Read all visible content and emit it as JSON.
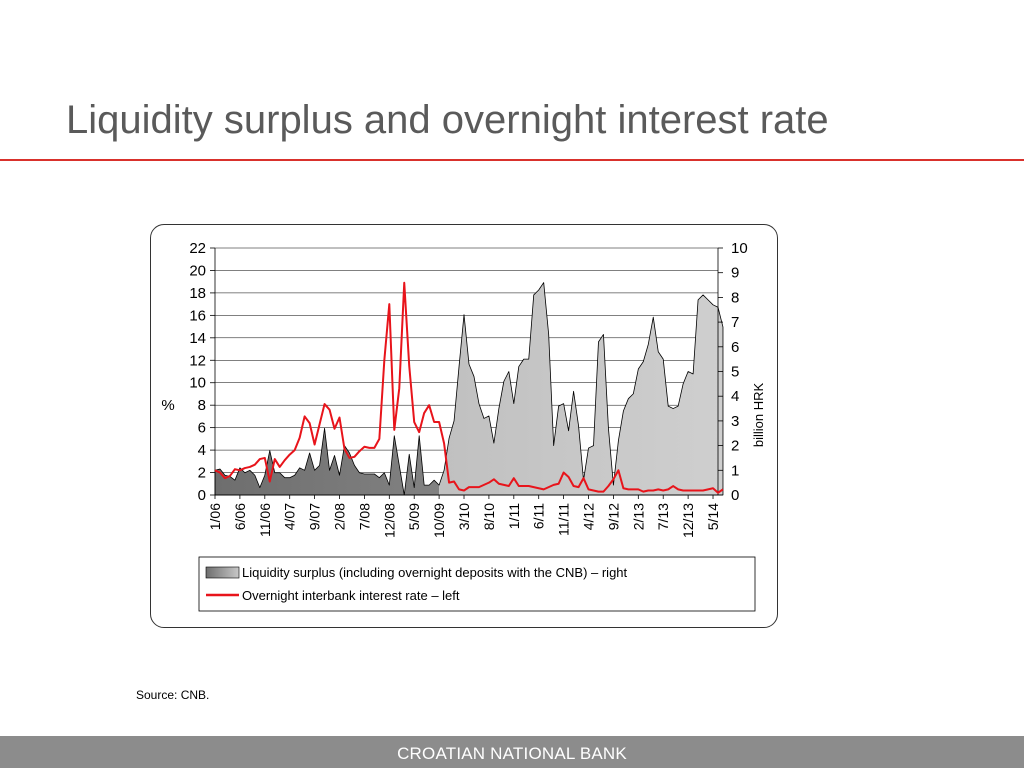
{
  "slide": {
    "title": "Liquidity surplus and overnight interest rate",
    "source": "Source: CNB.",
    "footer": "CROATIAN NATIONAL BANK"
  },
  "colors": {
    "rule": "#d9312c",
    "rate_line": "#e8141b",
    "area_dark": "#7a7a7a",
    "area_light": "#c4c4c4",
    "footer_bar": "#8c8c8c"
  },
  "chart_data": {
    "type": "area",
    "left_axis": {
      "label": "%",
      "ylim": [
        0,
        22
      ],
      "ticks": [
        0,
        2,
        4,
        6,
        8,
        10,
        12,
        14,
        16,
        18,
        20,
        22
      ]
    },
    "right_axis": {
      "label": "billion HRK",
      "ylim": [
        0,
        10
      ],
      "ticks": [
        0,
        1,
        2,
        3,
        4,
        5,
        6,
        7,
        8,
        9,
        10
      ]
    },
    "x_tick_labels": [
      "1/06",
      "6/06",
      "11/06",
      "4/07",
      "9/07",
      "2/08",
      "7/08",
      "12/08",
      "5/09",
      "10/09",
      "3/10",
      "8/10",
      "1/11",
      "6/11",
      "11/11",
      "4/12",
      "9/12",
      "2/13",
      "7/13",
      "12/13",
      "5/14"
    ],
    "x_month_index": [
      0,
      5,
      10,
      15,
      20,
      25,
      30,
      35,
      40,
      45,
      50,
      55,
      60,
      65,
      70,
      75,
      80,
      85,
      90,
      95,
      100
    ],
    "x_range": [
      0,
      101
    ],
    "gradient_split_month": 45,
    "grid": "horizontal",
    "legend_position": "bottom",
    "series": [
      {
        "name": "Liquidity surplus (including overnight deposits with the CNB) – right",
        "axis": "right",
        "kind": "area",
        "values": [
          1.0,
          1.05,
          0.8,
          0.75,
          0.6,
          1.1,
          0.9,
          1.0,
          0.8,
          0.3,
          0.8,
          1.8,
          0.9,
          0.9,
          0.7,
          0.7,
          0.8,
          1.1,
          1.0,
          1.7,
          1.0,
          1.2,
          2.7,
          1.0,
          1.6,
          0.8,
          2.0,
          1.7,
          1.2,
          0.9,
          0.85,
          0.85,
          0.85,
          0.7,
          0.9,
          0.4,
          2.4,
          1.2,
          0.0,
          1.65,
          0.3,
          2.4,
          0.4,
          0.4,
          0.6,
          0.4,
          1.0,
          2.3,
          3.0,
          5.2,
          7.3,
          5.3,
          4.8,
          3.7,
          3.1,
          3.2,
          2.1,
          3.5,
          4.6,
          5.0,
          3.7,
          5.2,
          5.5,
          5.5,
          8.1,
          8.3,
          8.6,
          6.5,
          2.0,
          3.6,
          3.7,
          2.6,
          4.2,
          2.8,
          0.6,
          1.9,
          2.0,
          6.2,
          6.5,
          2.7,
          0.4,
          2.2,
          3.4,
          3.9,
          4.1,
          5.1,
          5.4,
          6.1,
          7.2,
          5.8,
          5.5,
          3.6,
          3.5,
          3.6,
          4.5,
          5.0,
          4.9,
          7.9,
          8.1,
          7.9,
          7.7,
          7.6,
          6.8
        ]
      },
      {
        "name": "Overnight interbank interest rate – left",
        "axis": "left",
        "kind": "line",
        "values": [
          2.2,
          2.0,
          1.5,
          1.7,
          2.3,
          2.2,
          2.4,
          2.5,
          2.7,
          3.2,
          3.3,
          1.2,
          3.2,
          2.5,
          3.1,
          3.6,
          4.0,
          5.1,
          7.0,
          6.4,
          4.5,
          6.3,
          8.1,
          7.6,
          5.9,
          6.9,
          4.1,
          3.3,
          3.4,
          3.9,
          4.3,
          4.2,
          4.2,
          5.0,
          12.0,
          17.0,
          5.8,
          9.5,
          18.9,
          11.5,
          6.5,
          5.6,
          7.3,
          8.0,
          6.5,
          6.5,
          4.6,
          1.1,
          1.2,
          0.5,
          0.4,
          0.7,
          0.7,
          0.7,
          0.9,
          1.1,
          1.4,
          1.0,
          0.9,
          0.8,
          1.5,
          0.8,
          0.8,
          0.8,
          0.7,
          0.6,
          0.5,
          0.7,
          0.9,
          1.0,
          2.0,
          1.6,
          0.8,
          0.7,
          1.5,
          0.5,
          0.4,
          0.3,
          0.3,
          0.8,
          1.4,
          2.2,
          0.6,
          0.5,
          0.5,
          0.5,
          0.3,
          0.4,
          0.4,
          0.5,
          0.4,
          0.5,
          0.8,
          0.5,
          0.4,
          0.4,
          0.4,
          0.4,
          0.4,
          0.5,
          0.6,
          0.2,
          0.5
        ]
      }
    ]
  }
}
